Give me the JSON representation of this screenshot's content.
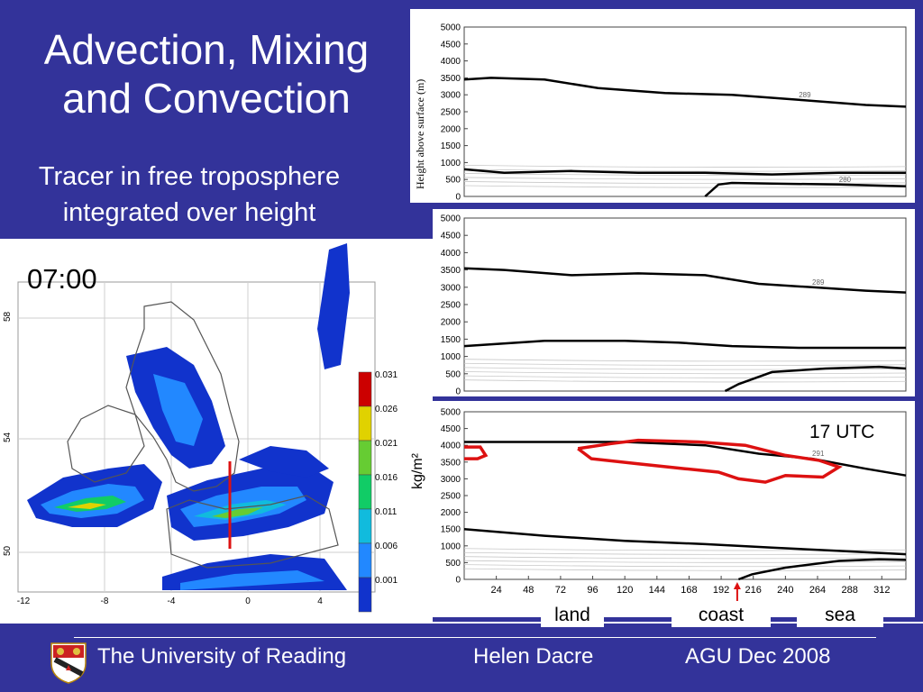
{
  "slide": {
    "title_line1": "Advection, Mixing",
    "title_line2": "and Convection",
    "subtitle_line1": "Tracer in free troposphere",
    "subtitle_line2": "integrated over height"
  },
  "map": {
    "time": "07:00",
    "lat_ticks": [
      "58",
      "54",
      "50"
    ],
    "lon_ticks": [
      "-12",
      "-8",
      "-4",
      "0",
      "4"
    ],
    "colorbar": [
      "0.031",
      "0.026",
      "0.021",
      "0.016",
      "0.011",
      "0.006",
      "0.001"
    ],
    "colorbar_colors": [
      "#cc0000",
      "#e0d200",
      "#66cc33",
      "#11cc66",
      "#11bbdd",
      "#2288ff",
      "#1133cc"
    ]
  },
  "chart_data": {
    "type": "line",
    "ylabel": "Height above surface (m)",
    "yticks": [
      "5000",
      "4500",
      "4000",
      "3500",
      "3000",
      "2500",
      "2000",
      "1500",
      "1000",
      "500",
      "0"
    ],
    "xticks": [
      "24",
      "48",
      "72",
      "96",
      "120",
      "144",
      "168",
      "192",
      "216",
      "240",
      "264",
      "288",
      "312"
    ],
    "ylim": [
      0,
      5000
    ],
    "xlim": [
      0,
      330
    ],
    "panels": [
      {
        "series": [
          {
            "name": "289",
            "x": [
              0,
              20,
              60,
              100,
              150,
              200,
              250,
              300,
              330
            ],
            "y": [
              3450,
              3500,
              3450,
              3200,
              3050,
              3000,
              2850,
              2700,
              2650
            ]
          },
          {
            "name": "",
            "x": [
              0,
              30,
              80,
              130,
              180,
              230,
              280,
              330
            ],
            "y": [
              800,
              700,
              750,
              700,
              700,
              650,
              700,
              700
            ]
          },
          {
            "name": "280",
            "x": [
              180,
              190,
              200,
              230,
              280,
              330
            ],
            "y": [
              0,
              350,
              400,
              380,
              350,
              300
            ]
          }
        ]
      },
      {
        "series": [
          {
            "name": "289",
            "x": [
              0,
              30,
              80,
              130,
              180,
              220,
              260,
              300,
              330
            ],
            "y": [
              3550,
              3500,
              3350,
              3400,
              3350,
              3100,
              3000,
              2900,
              2850
            ]
          },
          {
            "name": "",
            "x": [
              0,
              60,
              120,
              160,
              200,
              250,
              300,
              330
            ],
            "y": [
              1300,
              1450,
              1450,
              1400,
              1300,
              1250,
              1250,
              1250
            ]
          },
          {
            "name": "",
            "x": [
              195,
              205,
              230,
              270,
              310,
              330
            ],
            "y": [
              0,
              200,
              550,
              650,
              700,
              650
            ]
          }
        ]
      },
      {
        "series": [
          {
            "name": "291",
            "x": [
              0,
              60,
              120,
              180,
              220,
              260,
              300,
              330
            ],
            "y": [
              4100,
              4100,
              4100,
              4000,
              3750,
              3600,
              3300,
              3100
            ]
          },
          {
            "name": "",
            "x": [
              0,
              60,
              120,
              180,
              230,
              280,
              330
            ],
            "y": [
              1500,
              1300,
              1150,
              1050,
              950,
              850,
              750
            ]
          },
          {
            "name": "",
            "x": [
              205,
              215,
              240,
              280,
              310,
              330
            ],
            "y": [
              0,
              150,
              350,
              550,
              600,
              580
            ]
          }
        ],
        "highlight": [
          {
            "x": [
              0,
              12,
              16,
              10,
              0
            ],
            "y": [
              3950,
              3950,
              3700,
              3600,
              3600
            ]
          },
          {
            "x": [
              85,
              110,
              130,
              175,
              210,
              240,
              265,
              280,
              268,
              240,
              225,
              205,
              190,
              165,
              130,
              95,
              85
            ],
            "y": [
              3900,
              4050,
              4150,
              4100,
              4000,
              3700,
              3550,
              3350,
              3050,
              3100,
              2900,
              3000,
              3200,
              3300,
              3450,
              3600,
              3900
            ]
          }
        ]
      }
    ],
    "annotations": {
      "time_label": "17 UTC",
      "units": "kg/m²"
    }
  },
  "labels": {
    "land": "land",
    "coast": "coast",
    "sea": "sea"
  },
  "footer": {
    "university": "The University of Reading",
    "author": "Helen Dacre",
    "event": "AGU Dec 2008"
  }
}
